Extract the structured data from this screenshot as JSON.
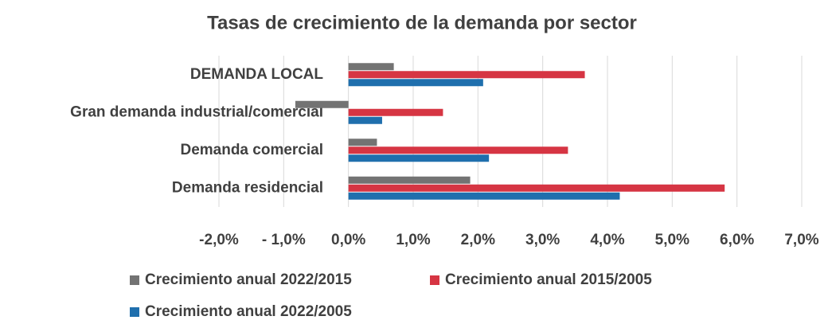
{
  "chart_data": {
    "type": "barh",
    "title": "Tasas de crecimiento de la demanda por sector",
    "categories": [
      "DEMANDA LOCAL",
      "Gran demanda industrial/comercial",
      "Demanda comercial",
      "Demanda residencial"
    ],
    "series": [
      {
        "name": "Crecimiento anual 2022/2015",
        "color": "#737373",
        "values": [
          0.7,
          -0.82,
          0.44,
          1.88
        ]
      },
      {
        "name": "Crecimiento anual 2015/2005",
        "color": "#d63543",
        "values": [
          3.65,
          1.46,
          3.39,
          5.81
        ]
      },
      {
        "name": "Crecimiento anual 2022/2005",
        "color": "#1f6fad",
        "values": [
          2.08,
          0.52,
          2.17,
          4.19
        ]
      }
    ],
    "xlim": [
      -2,
      7
    ],
    "xticks": [
      {
        "value": -2,
        "label": "-2,0%"
      },
      {
        "value": -1,
        "label": "- 1,0%"
      },
      {
        "value": 0,
        "label": "0,0%"
      },
      {
        "value": 1,
        "label": "1,0%"
      },
      {
        "value": 2,
        "label": "2,0%"
      },
      {
        "value": 3,
        "label": "3,0%"
      },
      {
        "value": 4,
        "label": "4,0%"
      },
      {
        "value": 5,
        "label": "5,0%"
      },
      {
        "value": 6,
        "label": "6,0%"
      },
      {
        "value": 7,
        "label": "7,0%"
      }
    ],
    "grid": true
  }
}
